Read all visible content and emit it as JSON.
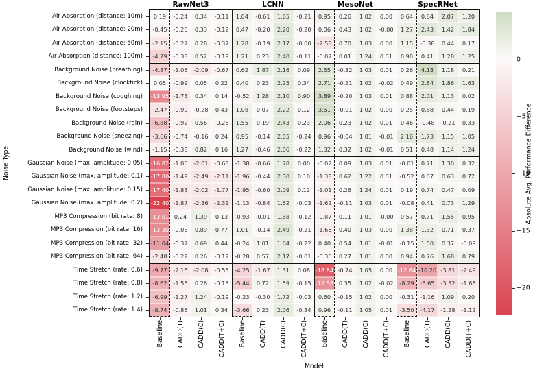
{
  "chart_data": {
    "type": "heatmap",
    "xlabel": "Model",
    "ylabel": "Noise Type",
    "colorbar_label": "Absolute Avg. Performance Difference",
    "colorbar_ticks": [
      {
        "value": 0,
        "label": "0"
      },
      {
        "value": -5,
        "label": "−5"
      },
      {
        "value": -10,
        "label": "−10"
      },
      {
        "value": -15,
        "label": "−15"
      },
      {
        "value": -20,
        "label": "−20"
      }
    ],
    "vmin": -22.4,
    "vmax": 4.13,
    "model_groups": [
      "RawNet3",
      "LCNN",
      "MesoNet",
      "SpecRNet"
    ],
    "column_labels_per_group": [
      "Baseline",
      "CADD(T)",
      "CADD(C)",
      "CADD(T+C)"
    ],
    "baseline_columns": [
      0,
      4,
      8,
      12
    ],
    "group_separator_columns": [
      4,
      8,
      12
    ],
    "row_group_breaks_after": [
      3,
      10,
      14,
      18
    ],
    "white_text_below": -12,
    "colors": {
      "negative_end": "#d84350",
      "zero": "#fbf9f8",
      "positive_end": "#cfdcc2",
      "text_dark": "#333333",
      "text_light": "#ffffff",
      "grid_line": "#111111"
    },
    "rows": [
      {
        "label": "Air Absorption (distance: 10m)",
        "values": [
          "0.19",
          "-0.24",
          "0.34",
          "-0.11",
          "1.04",
          "-0.61",
          "1.65",
          "-0.21",
          "0.95",
          "0.26",
          "1.02",
          "0.00",
          "0.64",
          "0.64",
          "2.07",
          "1.20"
        ]
      },
      {
        "label": "Air Absorption (distance: 20m)",
        "values": [
          "-0.45",
          "-0.25",
          "0.33",
          "-0.12",
          "0.47",
          "-0.20",
          "2.20",
          "-0.20",
          "0.06",
          "0.43",
          "1.02",
          "-0.00",
          "1.27",
          "2.43",
          "1.42",
          "1.84"
        ]
      },
      {
        "label": "Air Absorption (distance: 50m)",
        "values": [
          "-2.15",
          "-0.27",
          "0.28",
          "-0.37",
          "1.28",
          "-0.19",
          "2.17",
          "-0.00",
          "-2.58",
          "0.70",
          "1.03",
          "0.00",
          "1.15",
          "-0.38",
          "0.44",
          "0.17"
        ]
      },
      {
        "label": "Air Absorption (distance: 100m)",
        "values": [
          "-4.79",
          "-0.33",
          "0.52",
          "-0.19",
          "1.21",
          "0.23",
          "2.40",
          "-0.11",
          "-0.07",
          "0.01",
          "1.24",
          "0.01",
          "0.90",
          "0.41",
          "1.28",
          "1.25"
        ]
      },
      {
        "label": "Background Noise (breathing)",
        "values": [
          "-4.87",
          "-1.05",
          "-2.09",
          "-0.67",
          "0.62",
          "1.87",
          "2.16",
          "0.09",
          "2.55",
          "-0.32",
          "1.03",
          "0.01",
          "0.26",
          "4.13",
          "1.18",
          "0.21"
        ]
      },
      {
        "label": "Background Noise (clocktick)",
        "values": [
          "0.05",
          "-0.99",
          "0.05",
          "0.22",
          "0.40",
          "0.23",
          "2.25",
          "0.34",
          "2.71",
          "-0.21",
          "1.02",
          "-0.02",
          "0.49",
          "2.84",
          "1.86",
          "1.63"
        ]
      },
      {
        "label": "Background Noise (coughing)",
        "values": [
          "-13.95",
          "-1.73",
          "0.34",
          "0.14",
          "-0.52",
          "1.28",
          "2.10",
          "0.90",
          "3.89",
          "-0.20",
          "1.03",
          "0.01",
          "0.88",
          "2.01",
          "1.13",
          "0.02"
        ]
      },
      {
        "label": "Background Noise (footsteps)",
        "values": [
          "-2.47",
          "-0.99",
          "-0.28",
          "0.43",
          "1.08",
          "0.07",
          "2.22",
          "0.12",
          "3.51",
          "-0.01",
          "1.02",
          "0.00",
          "0.25",
          "0.88",
          "0.44",
          "0.19"
        ]
      },
      {
        "label": "Background Noise (rain)",
        "values": [
          "-6.88",
          "-0.92",
          "0.56",
          "-0.26",
          "1.55",
          "0.19",
          "2.43",
          "0.23",
          "2.06",
          "0.23",
          "1.02",
          "0.01",
          "0.46",
          "-0.48",
          "-0.21",
          "0.33"
        ]
      },
      {
        "label": "Background Noise (sneezing)",
        "values": [
          "-3.66",
          "-0.74",
          "-0.16",
          "0.24",
          "0.95",
          "-0.14",
          "2.05",
          "-0.24",
          "0.96",
          "-0.04",
          "1.01",
          "-0.01",
          "2.16",
          "1.73",
          "1.15",
          "1.05"
        ]
      },
      {
        "label": "Background Noise (wind)",
        "values": [
          "-1.15",
          "-0.38",
          "0.82",
          "0.16",
          "1.27",
          "-0.46",
          "2.06",
          "-0.22",
          "1.32",
          "0.32",
          "1.02",
          "-0.01",
          "0.51",
          "0.48",
          "1.14",
          "1.24"
        ]
      },
      {
        "label": "Gaussian Noise (max. amplitude: 0.05)",
        "values": [
          "-16.82",
          "-1.06",
          "-2.01",
          "-0.68",
          "-1.38",
          "-0.66",
          "1.78",
          "0.00",
          "-0.02",
          "0.09",
          "1.03",
          "0.01",
          "-0.01",
          "0.71",
          "1.30",
          "0.32"
        ]
      },
      {
        "label": "Gaussian Noise (max. amplitude: 0.1)",
        "values": [
          "-17.80",
          "-1.49",
          "-2.49",
          "-2.11",
          "-1.96",
          "-0.44",
          "2.30",
          "0.10",
          "-1.38",
          "0.62",
          "1.22",
          "0.01",
          "-0.52",
          "0.07",
          "0.63",
          "0.72"
        ]
      },
      {
        "label": "Gaussian Noise (max. amplitude: 0.15)",
        "values": [
          "-17.40",
          "-1.83",
          "-2.02",
          "-1.77",
          "-1.95",
          "-0.60",
          "2.09",
          "0.12",
          "-1.01",
          "0.26",
          "1.24",
          "0.01",
          "0.19",
          "0.74",
          "0.47",
          "0.09"
        ]
      },
      {
        "label": "Gaussian Noise (max. amplitude: 0.2)",
        "values": [
          "-22.40",
          "-1.87",
          "-2.36",
          "-2.31",
          "-1.13",
          "-0.84",
          "1.62",
          "-0.03",
          "-1.62",
          "-0.11",
          "1.03",
          "0.01",
          "-0.08",
          "0.41",
          "0.73",
          "1.29"
        ]
      },
      {
        "label": "MP3 Compression (bit rate: 8)",
        "values": [
          "-13.01",
          "0.24",
          "1.39",
          "0.13",
          "-0.93",
          "-0.01",
          "1.88",
          "-0.12",
          "-0.87",
          "0.11",
          "1.01",
          "-0.00",
          "0.57",
          "0.71",
          "1.55",
          "0.95"
        ]
      },
      {
        "label": "MP3 Compression (bit rate: 16)",
        "values": [
          "-13.30",
          "-0.03",
          "0.89",
          "0.77",
          "1.01",
          "-0.14",
          "2.49",
          "-0.21",
          "-1.66",
          "0.40",
          "1.03",
          "0.00",
          "1.38",
          "1.32",
          "0.71",
          "0.37"
        ]
      },
      {
        "label": "MP3 Compression (bit rate: 32)",
        "values": [
          "-11.04",
          "-0.37",
          "0.69",
          "0.44",
          "-0.24",
          "1.01",
          "1.64",
          "-0.22",
          "0.40",
          "0.54",
          "1.01",
          "-0.01",
          "-0.15",
          "1.50",
          "0.37",
          "-0.09"
        ]
      },
      {
        "label": "MP3 Compression (bit rate: 64)",
        "values": [
          "-2.48",
          "-0.22",
          "0.26",
          "-0.12",
          "-0.28",
          "0.57",
          "2.17",
          "-0.01",
          "-0.30",
          "0.27",
          "1.01",
          "0.00",
          "0.94",
          "0.76",
          "1.68",
          "0.79"
        ]
      },
      {
        "label": "Time Stretch (rate: 0.6)",
        "values": [
          "-9.77",
          "-2.16",
          "-2.08",
          "-0.55",
          "-4.25",
          "-1.67",
          "1.31",
          "0.08",
          "-18.84",
          "-0.74",
          "1.05",
          "0.00",
          "-12.64",
          "-10.20",
          "-3.81",
          "-2.49"
        ]
      },
      {
        "label": "Time Stretch (rate: 0.8)",
        "values": [
          "-8.62",
          "-1.55",
          "0.26",
          "-0.13",
          "-5.44",
          "0.72",
          "1.59",
          "-0.15",
          "-12.58",
          "0.35",
          "1.02",
          "-0.02",
          "-8.29",
          "-5.65",
          "-3.52",
          "-1.68"
        ]
      },
      {
        "label": "Time Stretch (rate: 1.2)",
        "values": [
          "-6.99",
          "-1.27",
          "1.24",
          "-0.19",
          "-0.23",
          "-0.30",
          "1.72",
          "-0.03",
          "0.60",
          "-0.15",
          "1.02",
          "0.00",
          "-0.31",
          "-1.16",
          "1.09",
          "0.20"
        ]
      },
      {
        "label": "Time Stretch (rate: 1.4)",
        "values": [
          "-8.74",
          "-0.85",
          "1.01",
          "0.34",
          "-3.66",
          "0.23",
          "2.06",
          "-0.34",
          "0.96",
          "-0.11",
          "1.05",
          "0.01",
          "-3.50",
          "-4.17",
          "-1.28",
          "-1.12"
        ]
      }
    ]
  }
}
